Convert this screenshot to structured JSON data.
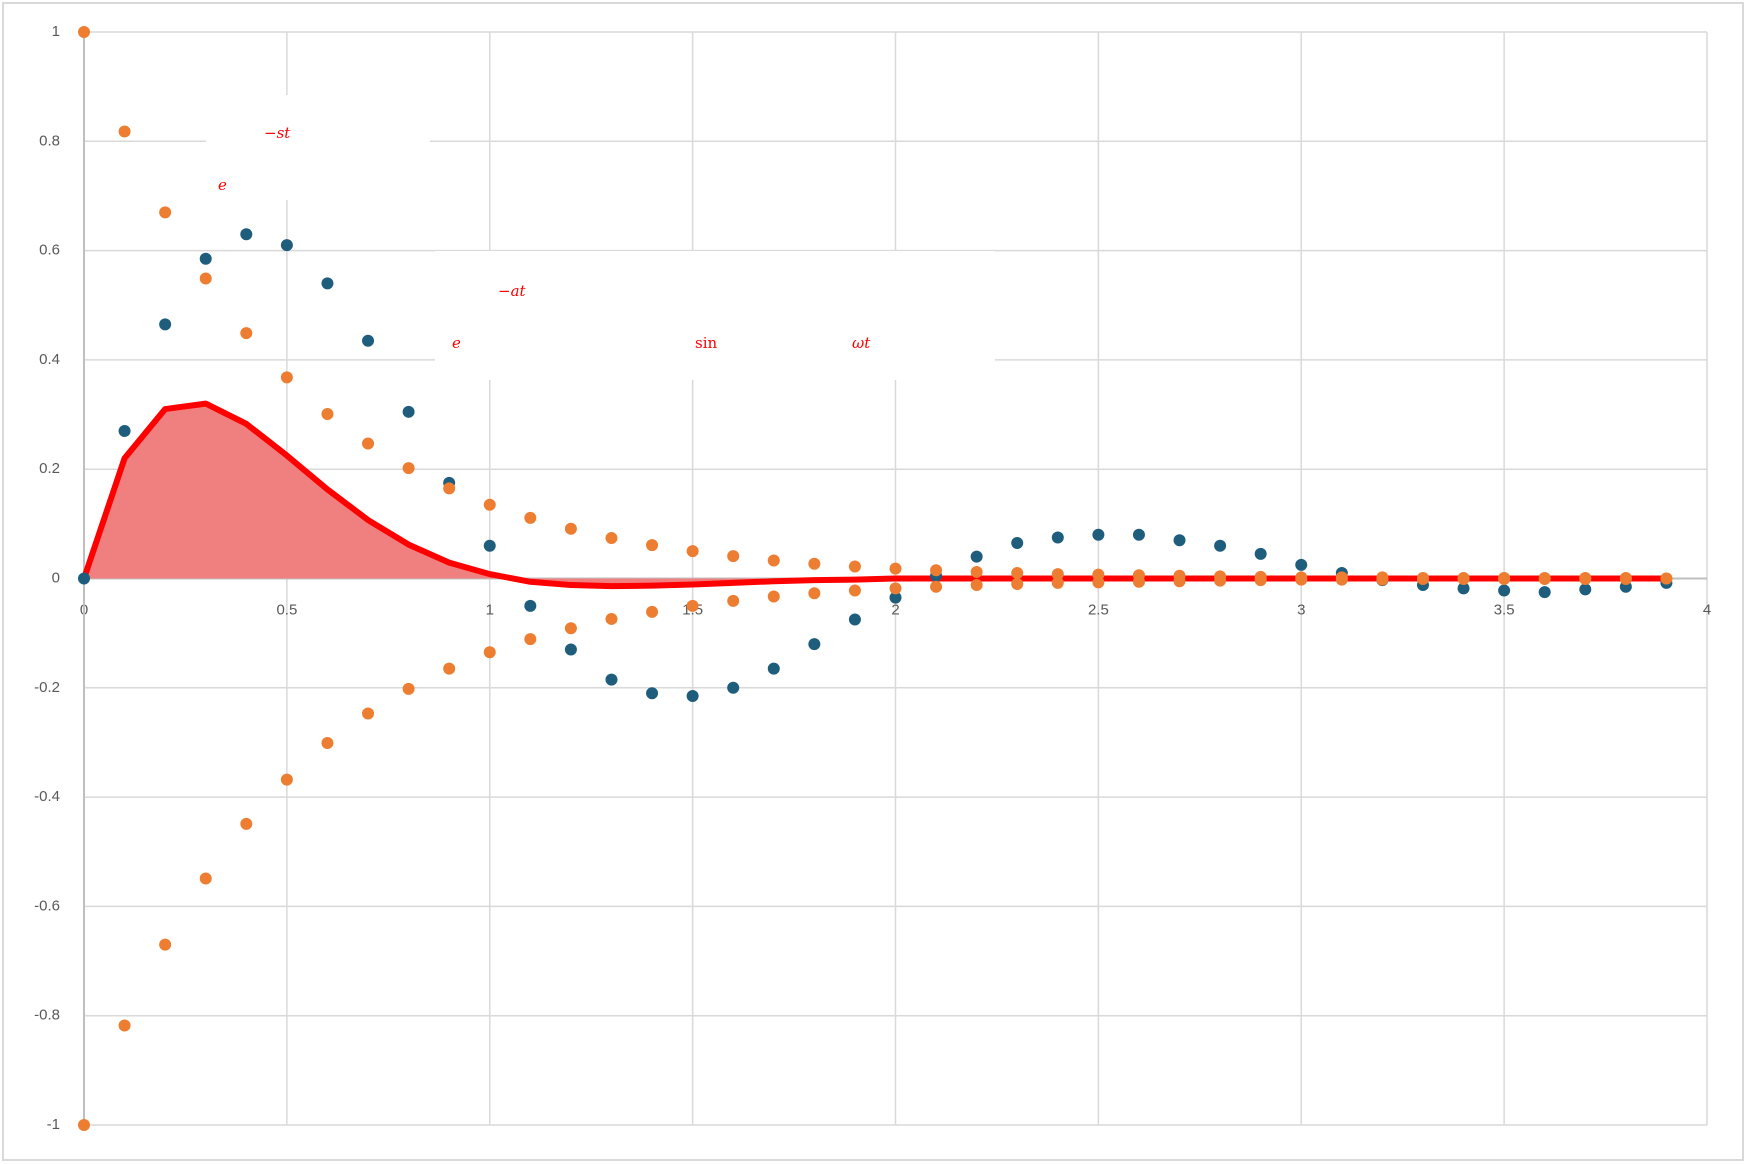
{
  "chart_data": {
    "type": "scatter",
    "annotations": [
      {
        "base": "e",
        "sup": "−st"
      },
      {
        "base": "e",
        "sup": "−at",
        "func": "sin",
        "arg": "ωt"
      }
    ],
    "x": [
      0,
      0.1,
      0.2,
      0.3,
      0.4,
      0.5,
      0.6,
      0.7,
      0.8,
      0.9,
      1,
      1.1,
      1.2,
      1.3,
      1.4,
      1.5,
      1.6,
      1.7,
      1.8,
      1.9,
      2,
      2.1,
      2.2,
      2.3,
      2.4,
      2.5,
      2.6,
      2.7,
      2.8,
      2.9,
      3,
      3.1,
      3.2,
      3.3,
      3.4,
      3.5,
      3.6,
      3.7,
      3.8,
      3.9
    ],
    "series": [
      {
        "style": "area",
        "color": "#ff0000",
        "fill": "#f08080",
        "values": [
          0,
          0.22,
          0.31,
          0.32,
          0.283,
          0.225,
          0.163,
          0.107,
          0.062,
          0.029,
          0.008,
          -0.006,
          -0.012,
          -0.014,
          -0.013,
          -0.011,
          -0.008,
          -0.005,
          -0.003,
          -0.002,
          0,
          0,
          0,
          0,
          0,
          0,
          0,
          0,
          0,
          0,
          0,
          0,
          0,
          0,
          0,
          0,
          0,
          0,
          0,
          0
        ]
      },
      {
        "style": "markers",
        "color": "#1f5d7d",
        "values": [
          0,
          0.27,
          0.465,
          0.585,
          0.63,
          0.61,
          0.54,
          0.435,
          0.305,
          0.175,
          0.06,
          -0.05,
          -0.13,
          -0.185,
          -0.21,
          -0.215,
          -0.2,
          -0.165,
          -0.12,
          -0.075,
          -0.035,
          0.005,
          0.04,
          0.065,
          0.075,
          0.08,
          0.08,
          0.07,
          0.06,
          0.045,
          0.025,
          0.01,
          -0.003,
          -0.012,
          -0.018,
          -0.022,
          -0.025,
          -0.02,
          -0.015,
          -0.008
        ]
      },
      {
        "style": "markers",
        "color": "#ed7d31",
        "values": [
          1,
          0.818,
          0.67,
          0.549,
          0.449,
          0.368,
          0.301,
          0.247,
          0.202,
          0.165,
          0.135,
          0.111,
          0.091,
          0.074,
          0.061,
          0.05,
          0.041,
          0.033,
          0.027,
          0.022,
          0.018,
          0.015,
          0.012,
          0.01,
          0.008,
          0.007,
          0.006,
          0.005,
          0.004,
          0.003,
          0.002,
          0.002,
          0.002,
          0.001,
          0.001,
          0.001,
          0.001,
          0.001,
          0.001,
          0
        ]
      },
      {
        "style": "markers",
        "color": "#ed7d31",
        "values": [
          -1,
          -0.818,
          -0.67,
          -0.549,
          -0.449,
          -0.368,
          -0.301,
          -0.247,
          -0.202,
          -0.165,
          -0.135,
          -0.111,
          -0.091,
          -0.074,
          -0.061,
          -0.05,
          -0.041,
          -0.033,
          -0.027,
          -0.022,
          -0.018,
          -0.015,
          -0.012,
          -0.01,
          -0.008,
          -0.007,
          -0.006,
          -0.005,
          -0.004,
          -0.003,
          -0.002,
          -0.002,
          -0.002,
          -0.001,
          -0.001,
          -0.001,
          -0.001,
          -0.001,
          -0.001,
          0
        ]
      }
    ],
    "xlim": [
      0,
      4
    ],
    "xticks": [
      0,
      0.5,
      1,
      1.5,
      2,
      2.5,
      3,
      3.5,
      4
    ],
    "ylim": [
      -1,
      1
    ],
    "yticks": [
      -1,
      -0.8,
      -0.6,
      -0.4,
      -0.2,
      0,
      0.2,
      0.4,
      0.6,
      0.8,
      1
    ],
    "grid": true
  }
}
